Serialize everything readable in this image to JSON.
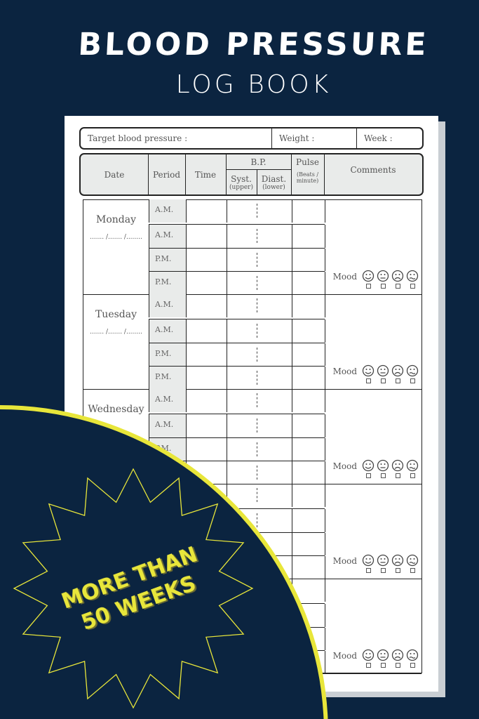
{
  "cover": {
    "title": "BLOOD PRESSURE",
    "subtitle": "LOG BOOK",
    "badge_line1": "MORE THAN",
    "badge_line2": "50 WEEKS"
  },
  "colors": {
    "background": "#0b2440",
    "accent": "#e8e63a",
    "header_fill": "#e9ebea"
  },
  "log": {
    "target_label": "Target blood pressure :",
    "weight_label": "Weight :",
    "week_label": "Week :",
    "headers": {
      "date": "Date",
      "period": "Period",
      "time": "Time",
      "bp": "B.P.",
      "syst": "Syst.",
      "syst_sub": "(upper)",
      "diast": "Diast.",
      "diast_sub": "(lower)",
      "pulse": "Pulse",
      "pulse_sub": "(Beats / minute)",
      "comments": "Comments"
    },
    "days": [
      {
        "name": "Monday",
        "date": "....... /....... /........"
      },
      {
        "name": "Tuesday",
        "date": "....... /....... /........"
      },
      {
        "name": "Wednesday",
        "date": ""
      },
      {
        "name": "",
        "date": ""
      },
      {
        "name": "",
        "date": ""
      }
    ],
    "periods": [
      "A.M.",
      "A.M.",
      "P.M.",
      "P.M."
    ],
    "mood_label": "Mood",
    "mood_icons": [
      "happy-face-icon",
      "neutral-face-icon",
      "sad-face-icon",
      "worried-face-icon"
    ]
  }
}
